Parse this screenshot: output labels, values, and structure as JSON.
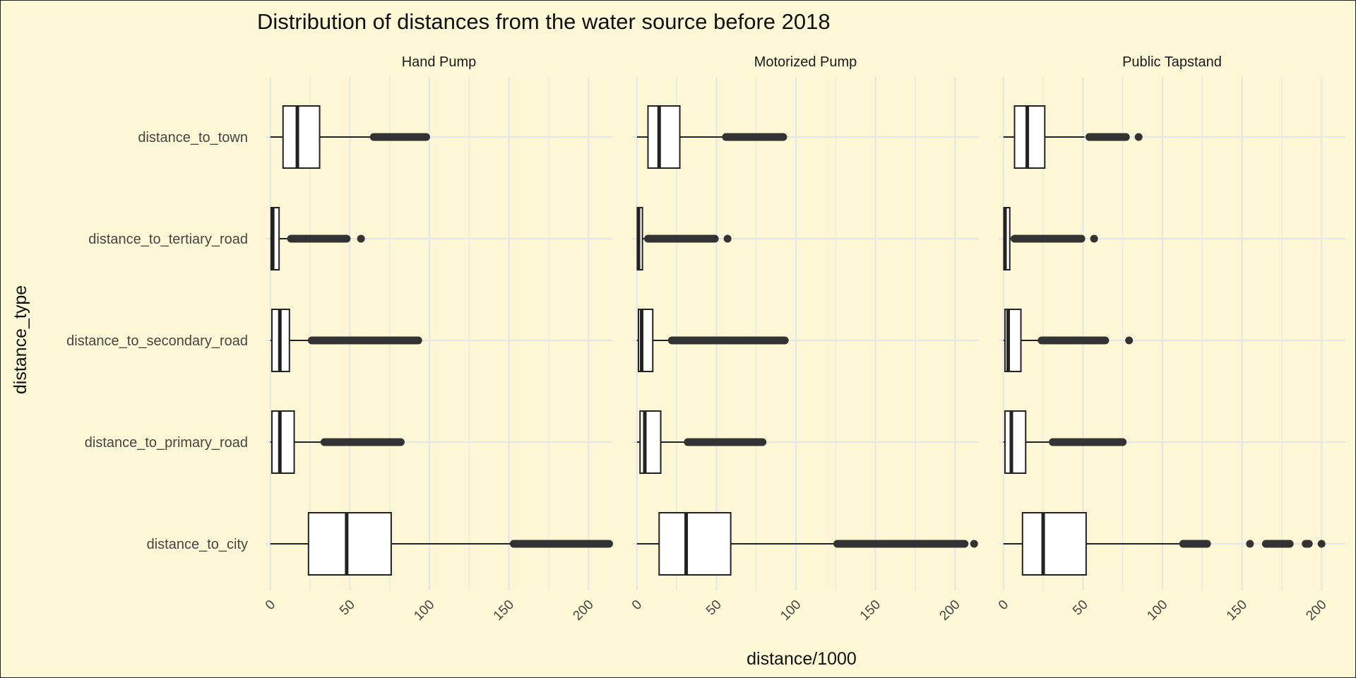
{
  "chart_data": {
    "type": "boxplot",
    "title": "Distribution of distances from the water source before 2018",
    "xlabel": "distance/1000",
    "ylabel": "distance_type",
    "xlim": [
      -3,
      215
    ],
    "x_ticks": [
      0,
      50,
      100,
      150,
      200
    ],
    "x_tick_labels": [
      "0",
      "50",
      "100",
      "150",
      "200"
    ],
    "grid": true,
    "background": "#fef7d6",
    "gridline_color": "#e6e6e6",
    "box_fill": "#ffffff",
    "box_stroke": "#222222",
    "outlier_color": "#333333",
    "categories": [
      "distance_to_town",
      "distance_to_tertiary_road",
      "distance_to_secondary_road",
      "distance_to_primary_road",
      "distance_to_city"
    ],
    "facets": [
      {
        "name": "Hand Pump",
        "boxes": [
          {
            "category": "distance_to_town",
            "whisker_low": 0,
            "q1": 8,
            "median": 17,
            "q3": 31,
            "whisker_high": 63,
            "outliers": [
              65,
              68,
              71,
              74,
              77,
              80,
              83,
              86,
              89,
              92,
              95,
              98
            ]
          },
          {
            "category": "distance_to_tertiary_road",
            "whisker_low": 0,
            "q1": 0.5,
            "median": 1.5,
            "q3": 5.5,
            "whisker_high": 12,
            "outliers": [
              13,
              16,
              19,
              22,
              25,
              28,
              31,
              34,
              37,
              40,
              43,
              46,
              48,
              57
            ]
          },
          {
            "category": "distance_to_secondary_road",
            "whisker_low": 0,
            "q1": 1,
            "median": 6,
            "q3": 12,
            "whisker_high": 25,
            "outliers": [
              26,
              30,
              34,
              38,
              42,
              46,
              50,
              54,
              58,
              62,
              66,
              70,
              74,
              78,
              82,
              86,
              90,
              93
            ]
          },
          {
            "category": "distance_to_primary_road",
            "whisker_low": 0,
            "q1": 1,
            "median": 6,
            "q3": 15,
            "whisker_high": 33,
            "outliers": [
              34,
              38,
              42,
              46,
              50,
              54,
              58,
              62,
              66,
              70,
              74,
              78,
              82
            ]
          },
          {
            "category": "distance_to_city",
            "whisker_low": 0,
            "q1": 24,
            "median": 48,
            "q3": 76,
            "whisker_high": 152,
            "outliers": [
              153,
              157,
              161,
              165,
              169,
              173,
              177,
              181,
              185,
              189,
              193,
              197,
              201,
              205,
              209,
              213
            ]
          }
        ]
      },
      {
        "name": "Motorized Pump",
        "boxes": [
          {
            "category": "distance_to_town",
            "whisker_low": 0,
            "q1": 7,
            "median": 14,
            "q3": 27,
            "whisker_high": 55,
            "outliers": [
              56,
              59,
              62,
              65,
              68,
              71,
              74,
              77,
              80,
              83,
              86,
              89,
              92
            ]
          },
          {
            "category": "distance_to_tertiary_road",
            "whisker_low": 0,
            "q1": 0.3,
            "median": 1,
            "q3": 3.5,
            "whisker_high": 6,
            "outliers": [
              7,
              10,
              13,
              16,
              19,
              22,
              25,
              28,
              31,
              34,
              37,
              40,
              43,
              46,
              49,
              57
            ]
          },
          {
            "category": "distance_to_secondary_road",
            "whisker_low": 0,
            "q1": 1,
            "median": 3,
            "q3": 10,
            "whisker_high": 21,
            "outliers": [
              22,
              26,
              30,
              34,
              38,
              42,
              46,
              50,
              54,
              58,
              62,
              66,
              70,
              74,
              78,
              82,
              86,
              90,
              93
            ]
          },
          {
            "category": "distance_to_primary_road",
            "whisker_low": 0,
            "q1": 2,
            "median": 5,
            "q3": 15,
            "whisker_high": 31,
            "outliers": [
              32,
              36,
              40,
              44,
              48,
              52,
              56,
              60,
              64,
              68,
              72,
              76,
              79
            ]
          },
          {
            "category": "distance_to_city",
            "whisker_low": 0,
            "q1": 14,
            "median": 31,
            "q3": 59,
            "whisker_high": 125,
            "outliers": [
              126,
              131,
              136,
              141,
              146,
              151,
              156,
              161,
              166,
              171,
              176,
              181,
              186,
              191,
              196,
              201,
              206,
              212
            ]
          }
        ]
      },
      {
        "name": "Public Tapstand",
        "boxes": [
          {
            "category": "distance_to_town",
            "whisker_low": 0,
            "q1": 7,
            "median": 15,
            "q3": 26,
            "whisker_high": 51,
            "outliers": [
              54,
              57,
              60,
              63,
              66,
              69,
              71,
              73,
              77,
              85
            ]
          },
          {
            "category": "distance_to_tertiary_road",
            "whisker_low": 0,
            "q1": 0.3,
            "median": 1,
            "q3": 4,
            "whisker_high": 6,
            "outliers": [
              7,
              10,
              13,
              16,
              19,
              22,
              25,
              28,
              31,
              34,
              37,
              40,
              43,
              46,
              49,
              57
            ]
          },
          {
            "category": "distance_to_secondary_road",
            "whisker_low": 0,
            "q1": 1,
            "median": 3,
            "q3": 11,
            "whisker_high": 23,
            "outliers": [
              24,
              28,
              32,
              36,
              40,
              44,
              48,
              52,
              56,
              60,
              64,
              79
            ]
          },
          {
            "category": "distance_to_primary_road",
            "whisker_low": 0,
            "q1": 1,
            "median": 5,
            "q3": 14,
            "whisker_high": 30,
            "outliers": [
              31,
              35,
              39,
              43,
              47,
              51,
              55,
              59,
              63,
              67,
              71,
              75
            ]
          },
          {
            "category": "distance_to_city",
            "whisker_low": 0,
            "q1": 12,
            "median": 25,
            "q3": 52,
            "whisker_high": 112,
            "outliers": [
              113,
              117,
              121,
              125,
              128,
              155,
              165,
              170,
              175,
              180,
              190,
              192,
              200
            ]
          }
        ]
      }
    ]
  }
}
